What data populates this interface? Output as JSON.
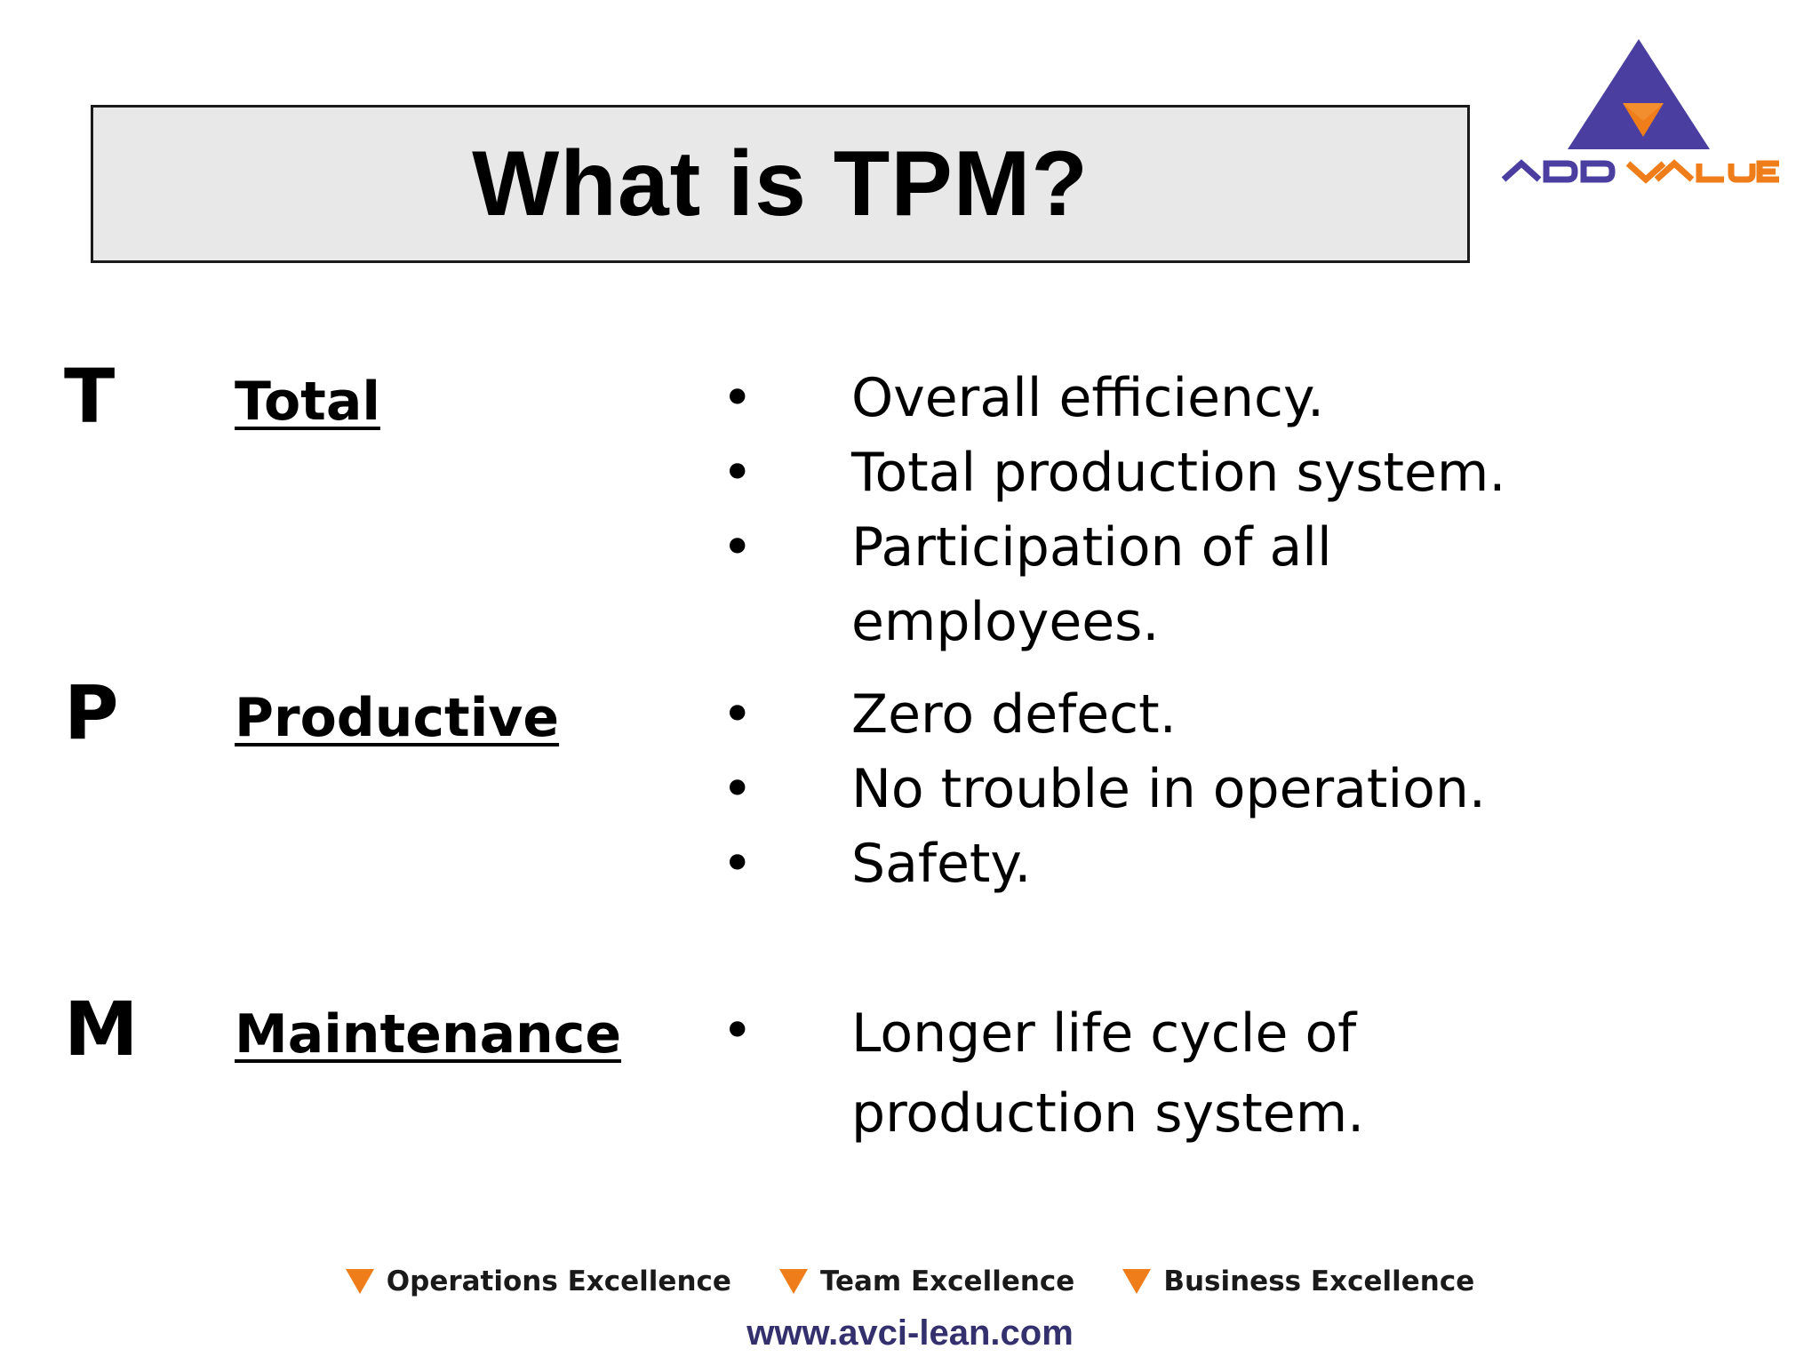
{
  "title": "What is TPM?",
  "logo": {
    "text": "ADD VALUE",
    "colors": {
      "triangle": "#4a3fa0",
      "accent": "#ef7d1a"
    }
  },
  "rows": [
    {
      "letter": "T",
      "word": "Total",
      "points": [
        "Overall efficiency.",
        "Total production system.",
        "Participation of all employees."
      ]
    },
    {
      "letter": "P",
      "word": "Productive",
      "points": [
        "Zero defect.",
        "No trouble in operation.",
        "Safety."
      ]
    },
    {
      "letter": "M",
      "word": "Maintenance",
      "points": [
        "Longer life cycle of production system."
      ]
    }
  ],
  "footer": {
    "tags": [
      "Operations Excellence",
      "Team Excellence",
      "Business Excellence"
    ],
    "url": "www.avci-lean.com",
    "accent": "#ef7d1a"
  },
  "bullet": "•"
}
